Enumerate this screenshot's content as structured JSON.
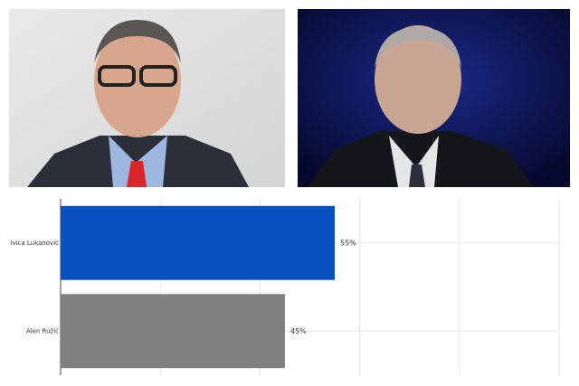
{
  "chart_data": {
    "type": "hbar",
    "categories": [
      "Ivica Luka​nović",
      "Alen Ružić"
    ],
    "values": [
      55,
      45
    ],
    "value_labels": [
      "55%",
      "45%"
    ],
    "colors": [
      "#0a50bf",
      "#808080"
    ],
    "xlim": [
      0,
      100
    ],
    "xticks": [
      0,
      20,
      40,
      60,
      80,
      100
    ],
    "grid": true
  }
}
